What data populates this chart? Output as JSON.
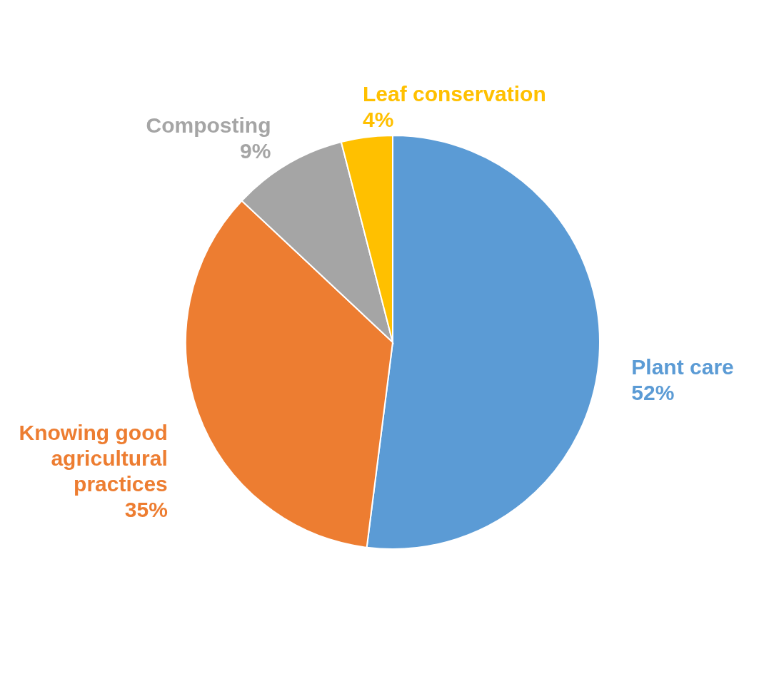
{
  "chart_data": {
    "type": "pie",
    "categories": [
      "Plant care",
      "Knowing good agricultural practices",
      "Composting",
      "Leaf conservation"
    ],
    "values": [
      52,
      35,
      9,
      4
    ],
    "colors": [
      "#5b9bd5",
      "#ed7d31",
      "#a5a5a5",
      "#ffc000"
    ],
    "value_labels": [
      "52%",
      "35%",
      "9%",
      "4%"
    ]
  }
}
